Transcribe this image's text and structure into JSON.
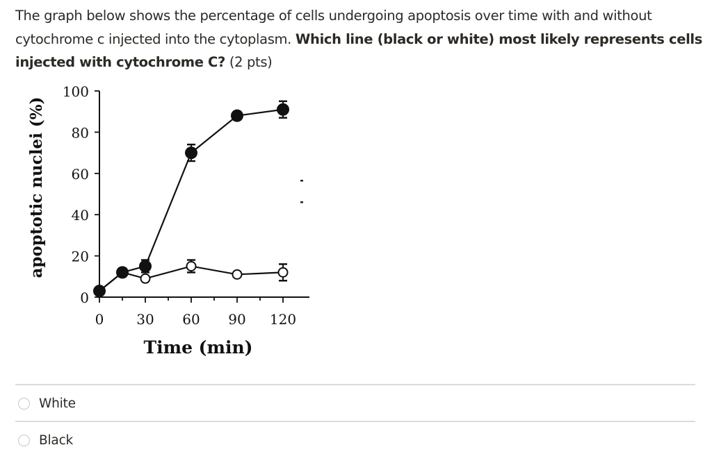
{
  "question": {
    "text_part1": "The graph below shows the percentage of cells undergoing apoptosis over time with and without cytochrome c injected into the cytoplasm. ",
    "text_bold": "Which line (black or white) most likely represents cells injected with cytochrome C?",
    "text_points": " (2 pts)"
  },
  "chart_data": {
    "type": "line",
    "title": "",
    "xlabel": "Time (min)",
    "ylabel": "apoptotic nuclei (%)",
    "xlim": [
      0,
      130
    ],
    "ylim": [
      0,
      100
    ],
    "x_ticks": [
      0,
      30,
      60,
      90,
      120
    ],
    "x_minor_ticks": [
      15,
      45,
      75,
      105
    ],
    "y_ticks": [
      0,
      20,
      40,
      60,
      80,
      100
    ],
    "grid": false,
    "legend": null,
    "series": [
      {
        "name": "Black (filled circles)",
        "marker": "filled-circle",
        "x": [
          0,
          15,
          30,
          60,
          90,
          120
        ],
        "y": [
          3,
          12,
          15,
          70,
          88,
          91
        ],
        "error": [
          0,
          1,
          2,
          3,
          1,
          3
        ]
      },
      {
        "name": "White (open circles)",
        "marker": "open-circle",
        "x": [
          0,
          15,
          30,
          60,
          90,
          120
        ],
        "y": [
          3,
          12,
          9,
          15,
          11,
          12
        ],
        "error": [
          0,
          1,
          0,
          2,
          0,
          3
        ]
      }
    ]
  },
  "answers": [
    {
      "label": "White"
    },
    {
      "label": "Black"
    }
  ]
}
